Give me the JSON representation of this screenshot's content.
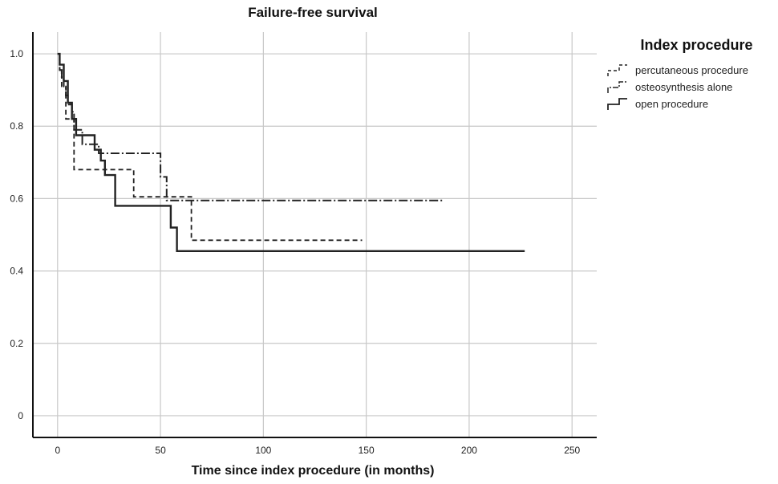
{
  "chart_data": {
    "type": "line",
    "title": "Failure-free survival",
    "xlabel": "Time since index procedure (in months)",
    "ylabel": "",
    "xlim": [
      -12,
      262
    ],
    "ylim": [
      -0.06,
      1.06
    ],
    "x_ticks": [
      0,
      50,
      100,
      150,
      200,
      250
    ],
    "y_ticks": [
      0,
      0.2,
      0.4,
      0.6,
      0.8,
      1.0
    ],
    "x_tick_labels": [
      "0",
      "50",
      "100",
      "150",
      "200",
      "250"
    ],
    "y_tick_labels": [
      "0",
      "0.2",
      "0.4",
      "0.6",
      "0.8",
      "1.0"
    ],
    "grid": true,
    "legend": {
      "title": "Index procedure",
      "position": "right"
    },
    "series": [
      {
        "name": "percutaneous procedure",
        "style": "dashed",
        "color": "#222222",
        "x": [
          0,
          1,
          1,
          2,
          2,
          4,
          4,
          8,
          8,
          37,
          37,
          65,
          65,
          148
        ],
        "y": [
          1.0,
          1.0,
          0.955,
          0.955,
          0.91,
          0.91,
          0.82,
          0.82,
          0.68,
          0.68,
          0.605,
          0.605,
          0.485,
          0.485
        ]
      },
      {
        "name": "osteosynthesis alone",
        "style": "dash-dot",
        "color": "#222222",
        "x": [
          0,
          1,
          1,
          2,
          2,
          3,
          3,
          4,
          4,
          5,
          5,
          7,
          7,
          8,
          8,
          12,
          12,
          20,
          20,
          50,
          50,
          53,
          53,
          187
        ],
        "y": [
          1.0,
          1.0,
          0.955,
          0.955,
          0.93,
          0.93,
          0.91,
          0.91,
          0.885,
          0.885,
          0.86,
          0.86,
          0.84,
          0.84,
          0.79,
          0.79,
          0.75,
          0.75,
          0.725,
          0.725,
          0.66,
          0.66,
          0.595,
          0.595
        ]
      },
      {
        "name": "open procedure",
        "style": "solid",
        "color": "#222222",
        "x": [
          0,
          1,
          1,
          3,
          3,
          5,
          5,
          7,
          7,
          9,
          9,
          18,
          18,
          21,
          21,
          23,
          23,
          28,
          28,
          55,
          55,
          58,
          58,
          227
        ],
        "y": [
          1.0,
          1.0,
          0.97,
          0.97,
          0.925,
          0.925,
          0.865,
          0.865,
          0.82,
          0.82,
          0.775,
          0.775,
          0.735,
          0.735,
          0.705,
          0.705,
          0.665,
          0.665,
          0.58,
          0.58,
          0.52,
          0.52,
          0.455,
          0.455
        ]
      }
    ]
  }
}
